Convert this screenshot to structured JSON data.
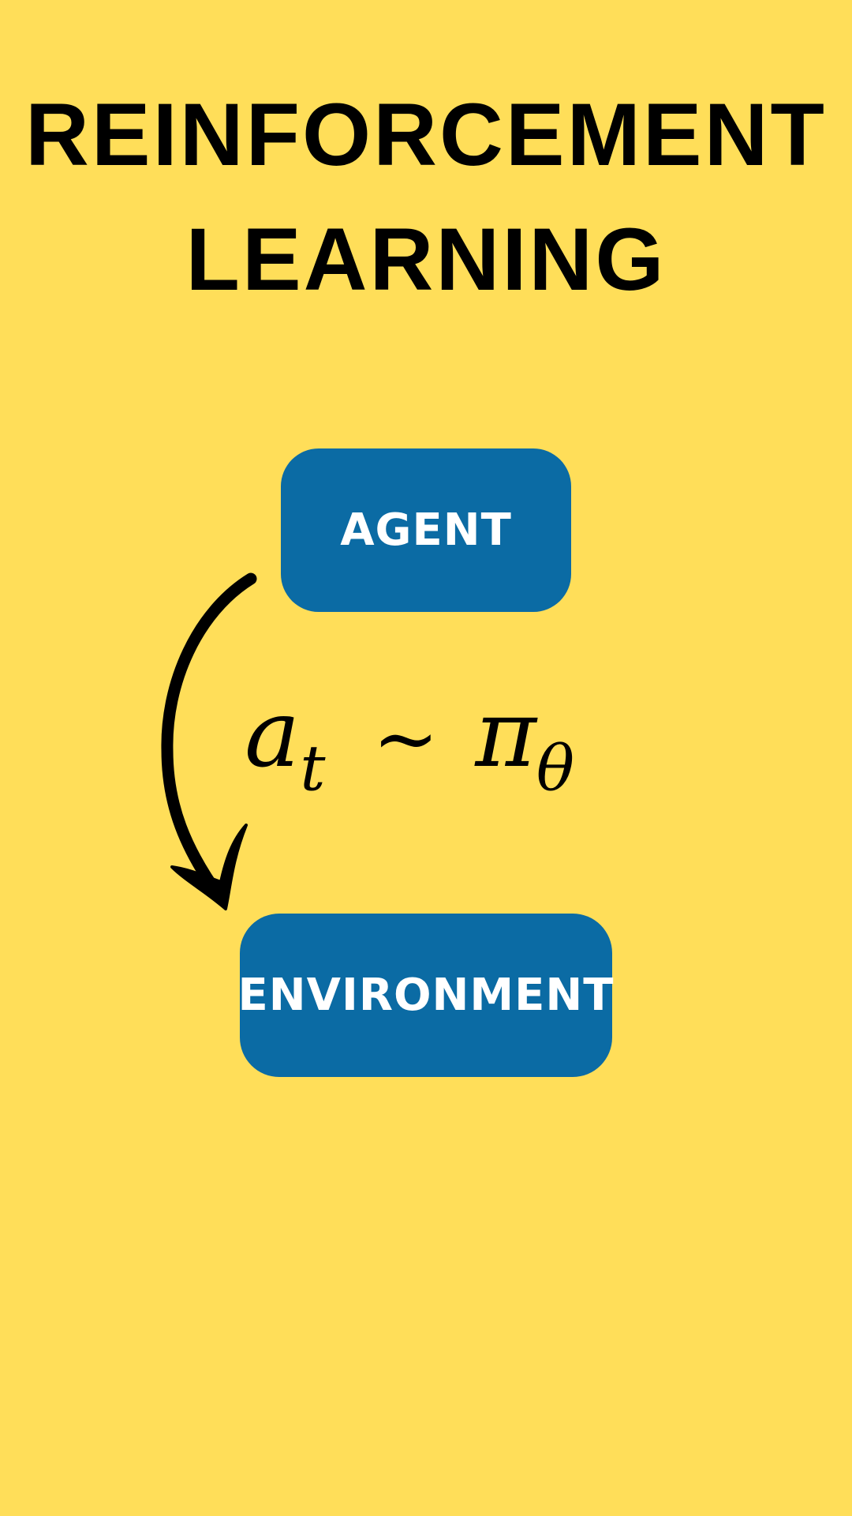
{
  "title": {
    "line1": "REINFORCEMENT",
    "line2": "LEARNING"
  },
  "nodes": {
    "agent": "AGENT",
    "environment": "ENVIRONMENT"
  },
  "formula": {
    "action": "a",
    "action_sub": "t",
    "relation": "~",
    "policy": "π",
    "policy_sub": "θ"
  },
  "colors": {
    "background": "#FFDE59",
    "node_fill": "#0B6BA4",
    "node_text": "#FFFFFF",
    "text": "#000000"
  },
  "icons": {
    "arrow": "curved-arrow-down-icon"
  }
}
